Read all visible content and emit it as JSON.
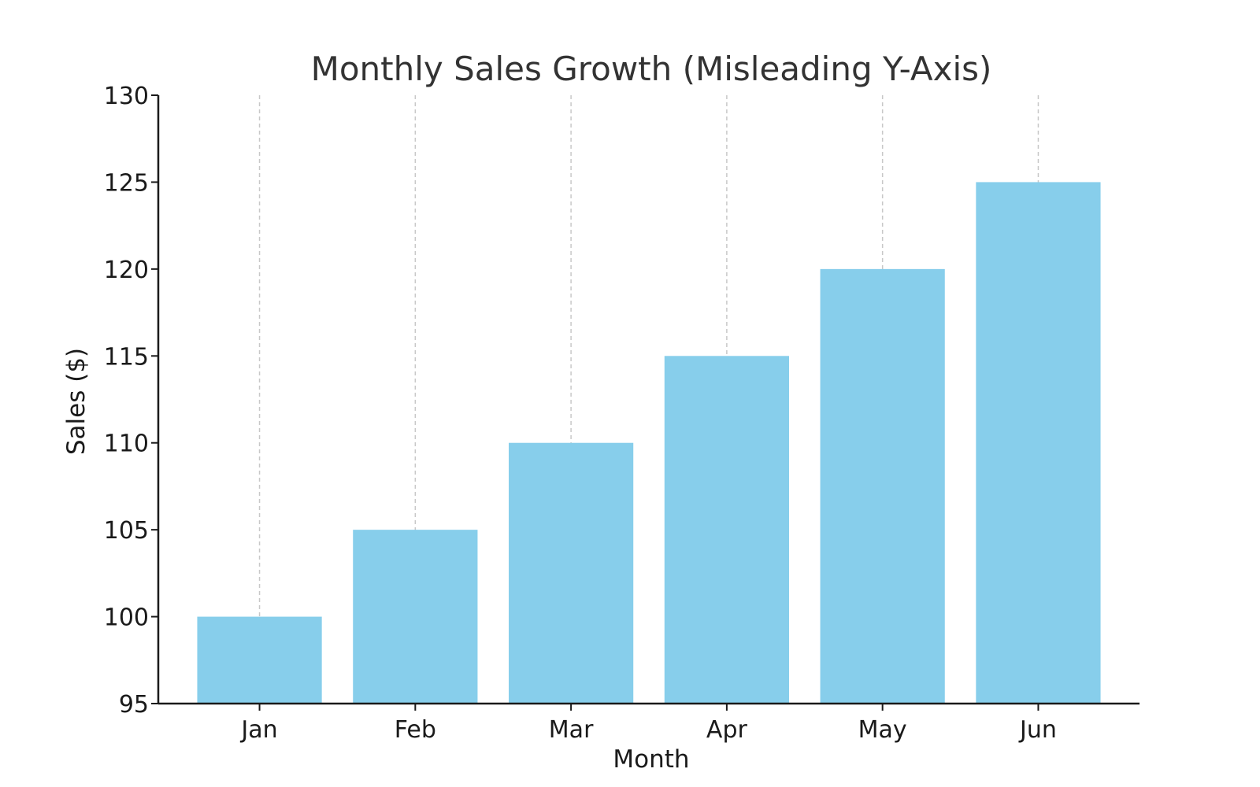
{
  "chart_data": {
    "type": "bar",
    "title": "Monthly Sales Growth (Misleading Y-Axis)",
    "xlabel": "Month",
    "ylabel": "Sales ($)",
    "categories": [
      "Jan",
      "Feb",
      "Mar",
      "Apr",
      "May",
      "Jun"
    ],
    "values": [
      100,
      105,
      110,
      115,
      120,
      125
    ],
    "ylim": [
      95,
      130
    ],
    "yticks": [
      95,
      100,
      105,
      110,
      115,
      120,
      125,
      130
    ],
    "grid": "vertical dashed at categories",
    "legend": "none",
    "colors": {
      "bar": "#87ceeb",
      "grid": "#c8c8c8",
      "axis": "#1a1a1a",
      "title": "#333333"
    }
  }
}
